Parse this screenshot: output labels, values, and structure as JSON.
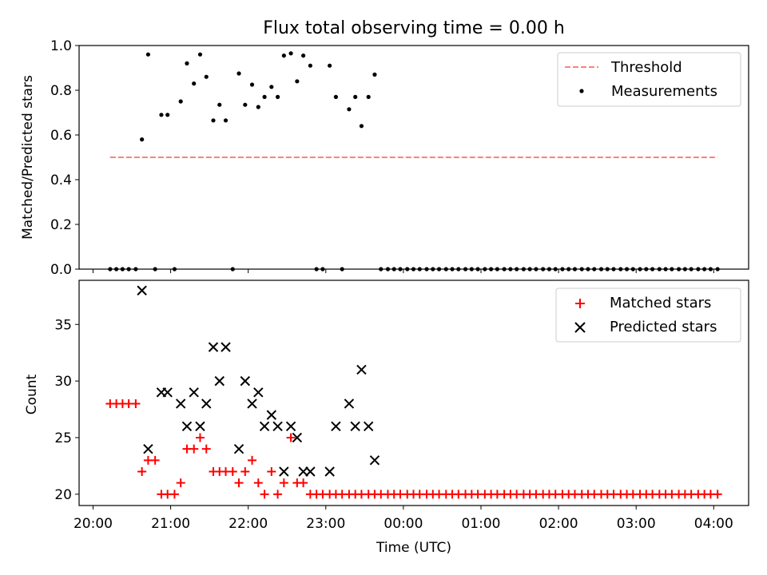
{
  "figure_title": "Flux total observing time = 0.00 h",
  "colors": {
    "threshold": "#ff7f7f",
    "measurements": "#000000",
    "matched": "#ff0000",
    "predicted": "#000000"
  },
  "chart_data": [
    {
      "type": "scatter",
      "title": "Flux total observing time = 0.00 h",
      "xlabel": "",
      "ylabel": "Matched/Predicted stars",
      "x_axis": "time (hours since 20:00 UTC)",
      "xlim": [
        -0.18,
        8.45
      ],
      "ylim": [
        0,
        1.0
      ],
      "yticks": [
        0.0,
        0.2,
        0.4,
        0.6,
        0.8,
        1.0
      ],
      "ytick_labels": [
        "0.0",
        "0.2",
        "0.4",
        "0.6",
        "0.8",
        "1.0"
      ],
      "grid": false,
      "legend": {
        "placement": "top-right",
        "entries": [
          "Threshold",
          "Measurements"
        ]
      },
      "threshold": {
        "name": "Threshold",
        "value": 0.5,
        "x_range": [
          0.22,
          8.05
        ],
        "style": "dashed"
      },
      "series": [
        {
          "name": "Measurements",
          "points": [
            [
              0.22,
              0
            ],
            [
              0.3,
              0
            ],
            [
              0.38,
              0
            ],
            [
              0.46,
              0
            ],
            [
              0.55,
              0
            ],
            [
              0.63,
              0.58
            ],
            [
              0.71,
              0.96
            ],
            [
              0.8,
              0
            ],
            [
              0.88,
              0.69
            ],
            [
              0.96,
              0.69
            ],
            [
              1.05,
              0
            ],
            [
              1.13,
              0.75
            ],
            [
              1.21,
              0.92
            ],
            [
              1.3,
              0.83
            ],
            [
              1.38,
              0.96
            ],
            [
              1.46,
              0.86
            ],
            [
              1.55,
              0.665
            ],
            [
              1.63,
              0.735
            ],
            [
              1.71,
              0.665
            ],
            [
              1.8,
              0
            ],
            [
              1.88,
              0.875
            ],
            [
              1.96,
              0.735
            ],
            [
              2.05,
              0.825
            ],
            [
              2.13,
              0.725
            ],
            [
              2.21,
              0.77
            ],
            [
              2.3,
              0.815
            ],
            [
              2.38,
              0.77
            ],
            [
              2.46,
              0.955
            ],
            [
              2.55,
              0.965
            ],
            [
              2.63,
              0.84
            ],
            [
              2.71,
              0.955
            ],
            [
              2.8,
              0.91
            ],
            [
              2.88,
              0
            ],
            [
              2.96,
              0
            ],
            [
              3.05,
              0.91
            ],
            [
              3.13,
              0.77
            ],
            [
              3.21,
              0
            ],
            [
              3.3,
              0.715
            ],
            [
              3.38,
              0.77
            ],
            [
              3.46,
              0.64
            ],
            [
              3.55,
              0.77
            ],
            [
              3.63,
              0.87
            ],
            [
              3.71,
              0
            ],
            [
              3.8,
              0
            ],
            [
              3.88,
              0
            ],
            [
              3.96,
              0
            ],
            [
              4.05,
              0
            ],
            [
              4.13,
              0
            ],
            [
              4.21,
              0
            ],
            [
              4.3,
              0
            ],
            [
              4.38,
              0
            ],
            [
              4.46,
              0
            ],
            [
              4.55,
              0
            ],
            [
              4.63,
              0
            ],
            [
              4.71,
              0
            ],
            [
              4.8,
              0
            ],
            [
              4.88,
              0
            ],
            [
              4.96,
              0
            ],
            [
              5.05,
              0
            ],
            [
              5.13,
              0
            ],
            [
              5.21,
              0
            ],
            [
              5.3,
              0
            ],
            [
              5.38,
              0
            ],
            [
              5.46,
              0
            ],
            [
              5.55,
              0
            ],
            [
              5.63,
              0
            ],
            [
              5.71,
              0
            ],
            [
              5.8,
              0
            ],
            [
              5.88,
              0
            ],
            [
              5.96,
              0
            ],
            [
              6.05,
              0
            ],
            [
              6.13,
              0
            ],
            [
              6.21,
              0
            ],
            [
              6.3,
              0
            ],
            [
              6.38,
              0
            ],
            [
              6.46,
              0
            ],
            [
              6.55,
              0
            ],
            [
              6.63,
              0
            ],
            [
              6.71,
              0
            ],
            [
              6.8,
              0
            ],
            [
              6.88,
              0
            ],
            [
              6.96,
              0
            ],
            [
              7.05,
              0
            ],
            [
              7.13,
              0
            ],
            [
              7.21,
              0
            ],
            [
              7.3,
              0
            ],
            [
              7.38,
              0
            ],
            [
              7.46,
              0
            ],
            [
              7.55,
              0
            ],
            [
              7.63,
              0
            ],
            [
              7.71,
              0
            ],
            [
              7.8,
              0
            ],
            [
              7.88,
              0
            ],
            [
              7.96,
              0
            ],
            [
              8.05,
              0
            ]
          ]
        }
      ]
    },
    {
      "type": "scatter",
      "title": "",
      "xlabel": "Time (UTC)",
      "ylabel": "Count",
      "x_axis": "time (hours since 20:00 UTC)",
      "xlim": [
        -0.18,
        8.45
      ],
      "ylim": [
        19,
        38.9
      ],
      "xticks": [
        0,
        1,
        2,
        3,
        4,
        5,
        6,
        7,
        8
      ],
      "xtick_labels": [
        "20:00",
        "21:00",
        "22:00",
        "23:00",
        "00:00",
        "01:00",
        "02:00",
        "03:00",
        "04:00"
      ],
      "yticks": [
        20,
        25,
        30,
        35
      ],
      "ytick_labels": [
        "20",
        "25",
        "30",
        "35"
      ],
      "grid": false,
      "legend": {
        "placement": "top-right",
        "entries": [
          "Matched stars",
          "Predicted stars"
        ]
      },
      "series": [
        {
          "name": "Matched stars",
          "marker": "plus",
          "points": [
            [
              0.22,
              28
            ],
            [
              0.3,
              28
            ],
            [
              0.38,
              28
            ],
            [
              0.46,
              28
            ],
            [
              0.55,
              28
            ],
            [
              0.63,
              22
            ],
            [
              0.71,
              23
            ],
            [
              0.8,
              23
            ],
            [
              0.88,
              20
            ],
            [
              0.96,
              20
            ],
            [
              1.05,
              20
            ],
            [
              1.13,
              21
            ],
            [
              1.21,
              24
            ],
            [
              1.3,
              24
            ],
            [
              1.38,
              25
            ],
            [
              1.46,
              24
            ],
            [
              1.55,
              22
            ],
            [
              1.63,
              22
            ],
            [
              1.71,
              22
            ],
            [
              1.8,
              22
            ],
            [
              1.88,
              21
            ],
            [
              1.96,
              22
            ],
            [
              2.05,
              23
            ],
            [
              2.13,
              21
            ],
            [
              2.21,
              20
            ],
            [
              2.3,
              22
            ],
            [
              2.38,
              20
            ],
            [
              2.46,
              21
            ],
            [
              2.55,
              25
            ],
            [
              2.63,
              21
            ],
            [
              2.71,
              21
            ],
            [
              2.8,
              20
            ],
            [
              2.88,
              20
            ],
            [
              2.96,
              20
            ],
            [
              3.05,
              20
            ],
            [
              3.13,
              20
            ],
            [
              3.21,
              20
            ],
            [
              3.3,
              20
            ],
            [
              3.38,
              20
            ],
            [
              3.46,
              20
            ],
            [
              3.55,
              20
            ],
            [
              3.63,
              20
            ],
            [
              3.71,
              20
            ],
            [
              3.8,
              20
            ],
            [
              3.88,
              20
            ],
            [
              3.96,
              20
            ],
            [
              4.05,
              20
            ],
            [
              4.13,
              20
            ],
            [
              4.21,
              20
            ],
            [
              4.3,
              20
            ],
            [
              4.38,
              20
            ],
            [
              4.46,
              20
            ],
            [
              4.55,
              20
            ],
            [
              4.63,
              20
            ],
            [
              4.71,
              20
            ],
            [
              4.8,
              20
            ],
            [
              4.88,
              20
            ],
            [
              4.96,
              20
            ],
            [
              5.05,
              20
            ],
            [
              5.13,
              20
            ],
            [
              5.21,
              20
            ],
            [
              5.3,
              20
            ],
            [
              5.38,
              20
            ],
            [
              5.46,
              20
            ],
            [
              5.55,
              20
            ],
            [
              5.63,
              20
            ],
            [
              5.71,
              20
            ],
            [
              5.8,
              20
            ],
            [
              5.88,
              20
            ],
            [
              5.96,
              20
            ],
            [
              6.05,
              20
            ],
            [
              6.13,
              20
            ],
            [
              6.21,
              20
            ],
            [
              6.3,
              20
            ],
            [
              6.38,
              20
            ],
            [
              6.46,
              20
            ],
            [
              6.55,
              20
            ],
            [
              6.63,
              20
            ],
            [
              6.71,
              20
            ],
            [
              6.8,
              20
            ],
            [
              6.88,
              20
            ],
            [
              6.96,
              20
            ],
            [
              7.05,
              20
            ],
            [
              7.13,
              20
            ],
            [
              7.21,
              20
            ],
            [
              7.3,
              20
            ],
            [
              7.38,
              20
            ],
            [
              7.46,
              20
            ],
            [
              7.55,
              20
            ],
            [
              7.63,
              20
            ],
            [
              7.71,
              20
            ],
            [
              7.8,
              20
            ],
            [
              7.88,
              20
            ],
            [
              7.96,
              20
            ],
            [
              8.05,
              20
            ]
          ]
        },
        {
          "name": "Predicted stars",
          "marker": "x",
          "points": [
            [
              0.63,
              38
            ],
            [
              0.71,
              24
            ],
            [
              0.88,
              29
            ],
            [
              0.96,
              29
            ],
            [
              1.13,
              28
            ],
            [
              1.21,
              26
            ],
            [
              1.3,
              29
            ],
            [
              1.38,
              26
            ],
            [
              1.46,
              28
            ],
            [
              1.55,
              33
            ],
            [
              1.63,
              30
            ],
            [
              1.71,
              33
            ],
            [
              1.88,
              24
            ],
            [
              1.96,
              30
            ],
            [
              2.05,
              28
            ],
            [
              2.13,
              29
            ],
            [
              2.21,
              26
            ],
            [
              2.3,
              27
            ],
            [
              2.38,
              26
            ],
            [
              2.46,
              22
            ],
            [
              2.55,
              26
            ],
            [
              2.63,
              25
            ],
            [
              2.71,
              22
            ],
            [
              2.8,
              22
            ],
            [
              3.05,
              22
            ],
            [
              3.13,
              26
            ],
            [
              3.3,
              28
            ],
            [
              3.38,
              26
            ],
            [
              3.46,
              31
            ],
            [
              3.55,
              26
            ],
            [
              3.63,
              23
            ]
          ]
        }
      ]
    }
  ]
}
